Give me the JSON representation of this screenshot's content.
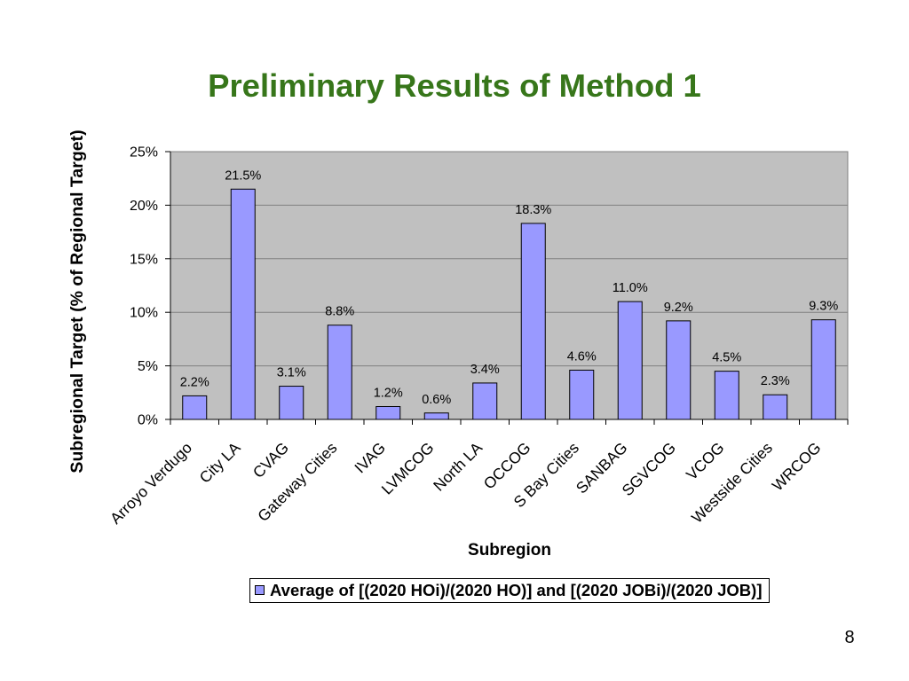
{
  "slide": {
    "page_number": "8"
  },
  "colors": {
    "title": "#37761A",
    "bar_fill": "#9999FF",
    "bar_outline": "#000000",
    "plot_background": "#C0C0C0",
    "gridline": "#808080"
  },
  "chart_data": {
    "type": "bar",
    "title": "Preliminary Results of Method 1",
    "xlabel": "Subregion",
    "ylabel": "Subregional Target (% of Regional Target)",
    "categories": [
      "Arroyo Verdugo",
      "City LA",
      "CVAG",
      "Gateway Cities",
      "IVAG",
      "LVMCOG",
      "North LA",
      "OCCOG",
      "S Bay Cities",
      "SANBAG",
      "SGVCOG",
      "VCOG",
      "Westside Cities",
      "WRCOG"
    ],
    "series": [
      {
        "name": "Average of [(2020 HOi)/(2020 HO)] and [(2020 JOBi)/(2020 JOB)]",
        "values": [
          2.2,
          21.5,
          3.1,
          8.8,
          1.2,
          0.6,
          3.4,
          18.3,
          4.6,
          11.0,
          9.2,
          4.5,
          2.3,
          9.3
        ]
      }
    ],
    "data_labels": [
      "2.2%",
      "21.5%",
      "3.1%",
      "8.8%",
      "1.2%",
      "0.6%",
      "3.4%",
      "18.3%",
      "4.6%",
      "11.0%",
      "9.2%",
      "4.5%",
      "2.3%",
      "9.3%"
    ],
    "ylim": [
      0,
      25
    ],
    "yticks": [
      0,
      5,
      10,
      15,
      20,
      25
    ],
    "ytick_labels": [
      "0%",
      "5%",
      "10%",
      "15%",
      "20%",
      "25%"
    ],
    "grid": true,
    "legend": "bottom"
  }
}
